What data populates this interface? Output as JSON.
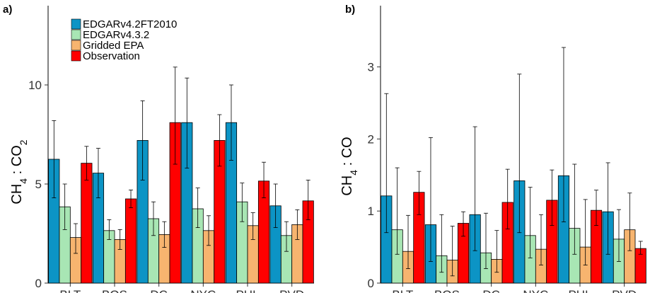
{
  "colors": {
    "edgar42": "#0c94c5",
    "edgar43": "#a8e6b4",
    "epa": "#f7b46f",
    "obs": "#ff0000"
  },
  "chart_data": [
    {
      "type": "bar",
      "panel": "a)",
      "ylabel_main": "CH",
      "ylabel_sub1": "4",
      "ylabel_mid": " : CO",
      "ylabel_sub2": "2",
      "ylim": [
        0,
        14
      ],
      "yticks": [
        0,
        5,
        10
      ],
      "categories": [
        "BLT",
        "BOS",
        "DC",
        "NYC",
        "PHL",
        "PVD"
      ],
      "legend": [
        "EDGARv4.2FT2010",
        "EDGARv4.3.2",
        "Gridded EPA",
        "Observation"
      ],
      "legend_position": "top-left",
      "series": [
        {
          "name": "EDGARv4.2FT2010",
          "values": [
            6.25,
            5.55,
            7.2,
            8.1,
            8.1,
            3.9
          ],
          "err_low": [
            4.3,
            4.3,
            5.2,
            5.8,
            6.2,
            2.8
          ],
          "err_high": [
            8.2,
            6.8,
            9.2,
            10.35,
            10.0,
            5.0
          ]
        },
        {
          "name": "EDGARv4.3.2",
          "values": [
            3.85,
            2.65,
            3.25,
            3.75,
            4.1,
            2.4
          ],
          "err_low": [
            2.7,
            2.2,
            2.4,
            2.8,
            3.1,
            1.6
          ],
          "err_high": [
            5.0,
            3.2,
            4.1,
            4.8,
            5.05,
            3.1
          ]
        },
        {
          "name": "Gridded EPA",
          "values": [
            2.3,
            2.2,
            2.45,
            2.65,
            2.9,
            2.95
          ],
          "err_low": [
            1.5,
            1.7,
            1.8,
            1.9,
            2.2,
            2.2
          ],
          "err_high": [
            3.0,
            2.7,
            3.1,
            3.4,
            3.55,
            3.7
          ]
        },
        {
          "name": "Observation",
          "values": [
            6.05,
            4.25,
            8.1,
            7.2,
            5.15,
            4.15
          ],
          "err_low": [
            5.2,
            3.8,
            6.0,
            5.9,
            4.3,
            3.2
          ],
          "err_high": [
            6.9,
            4.7,
            10.9,
            8.5,
            6.1,
            5.2
          ]
        }
      ]
    },
    {
      "type": "bar",
      "panel": "b)",
      "ylabel_main": "CH",
      "ylabel_sub1": "4",
      "ylabel_mid": " : CO",
      "ylabel_sub2": "",
      "ylim": [
        0,
        3.85
      ],
      "yticks": [
        0,
        1,
        2,
        3
      ],
      "categories": [
        "BLT",
        "BOS",
        "DC",
        "NYC",
        "PHL",
        "PVD"
      ],
      "series": [
        {
          "name": "EDGARv4.2FT2010",
          "values": [
            1.21,
            0.81,
            0.95,
            1.42,
            1.49,
            0.99
          ],
          "err_low": [
            0.7,
            0.3,
            0.45,
            0.7,
            0.85,
            0.4
          ],
          "err_high": [
            2.63,
            2.02,
            2.17,
            2.9,
            3.27,
            1.67
          ]
        },
        {
          "name": "EDGARv4.3.2",
          "values": [
            0.74,
            0.38,
            0.42,
            0.66,
            0.76,
            0.61
          ],
          "err_low": [
            0.4,
            0.15,
            0.2,
            0.35,
            0.4,
            0.3
          ],
          "err_high": [
            1.6,
            0.95,
            0.97,
            1.33,
            1.65,
            1.02
          ]
        },
        {
          "name": "Gridded EPA",
          "values": [
            0.44,
            0.32,
            0.33,
            0.47,
            0.5,
            0.74
          ],
          "err_low": [
            0.2,
            0.1,
            0.15,
            0.25,
            0.25,
            0.45
          ],
          "err_high": [
            0.94,
            0.79,
            0.73,
            0.95,
            1.16,
            1.25
          ]
        },
        {
          "name": "Observation",
          "values": [
            1.26,
            0.83,
            1.12,
            1.15,
            1.01,
            0.48
          ],
          "err_low": [
            0.95,
            0.65,
            0.75,
            0.8,
            0.8,
            0.4
          ],
          "err_high": [
            1.55,
            0.99,
            1.58,
            1.57,
            1.29,
            0.58
          ]
        }
      ]
    }
  ]
}
